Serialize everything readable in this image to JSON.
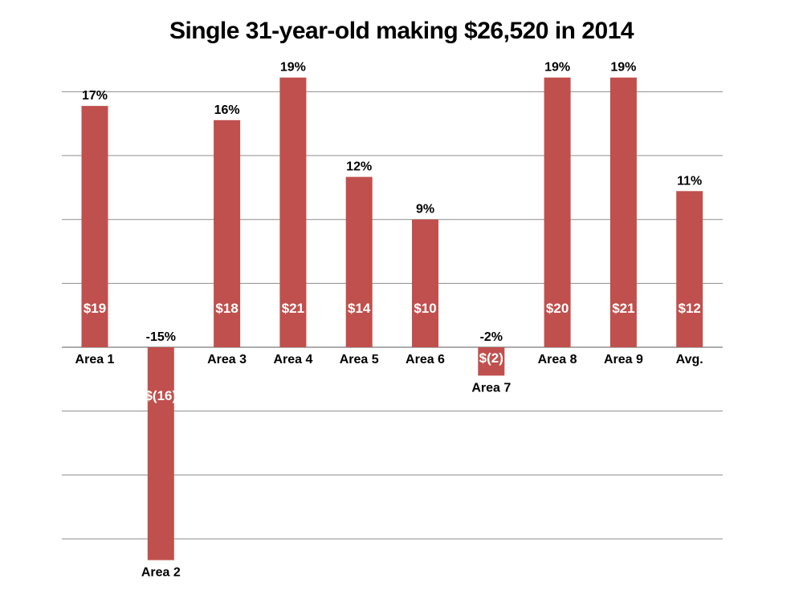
{
  "chart_data": {
    "type": "bar",
    "title": "Single 31-year-old making $26,520 in 2014",
    "xlabel": "",
    "ylabel": "",
    "ylim": [
      -16,
      20
    ],
    "gridlines": true,
    "bar_color": "#c0504d",
    "categories": [
      "Area 1",
      "Area 2",
      "Area 3",
      "Area 4",
      "Area 5",
      "Area 6",
      "Area 7",
      "Area 8",
      "Area 9",
      "Avg."
    ],
    "values": [
      17,
      -15,
      16,
      19,
      12,
      9,
      -2,
      19,
      19,
      11
    ],
    "value_labels": [
      "17%",
      "-15%",
      "16%",
      "19%",
      "12%",
      "9%",
      "-2%",
      "19%",
      "19%",
      "11%"
    ],
    "dollar_labels": [
      "$19",
      "$(16)",
      "$18",
      "$21",
      "$14",
      "$10",
      "$(2)",
      "$20",
      "$21",
      "$12"
    ]
  }
}
